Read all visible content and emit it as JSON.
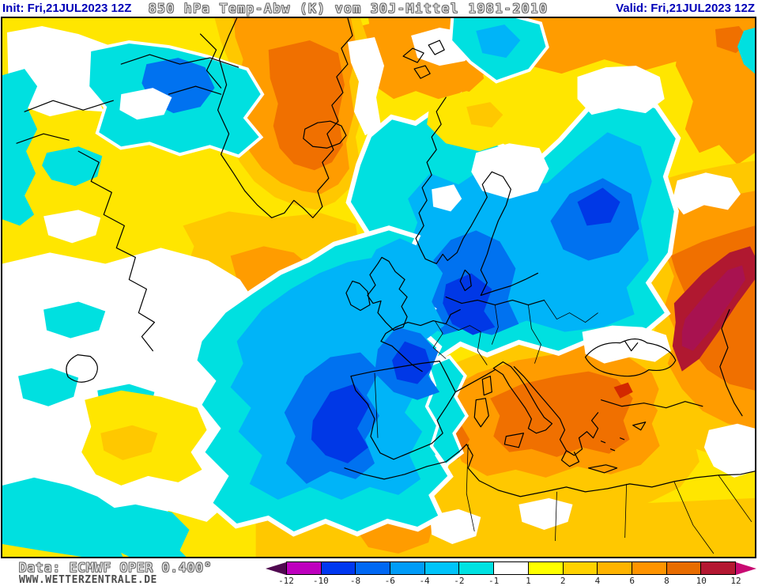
{
  "header": {
    "init_label": "Init: Fri,21JUL2023 12Z",
    "title": "850 hPa Temp-Abw (K) vom 30J-Mittel 1981-2010",
    "valid_label": "Valid: Fri,21JUL2023 12Z",
    "accent_color": "#0000b8"
  },
  "footer": {
    "data_source": "Data: ECMWF OPER 0.400°",
    "website": "WWW.WETTERZENTRALE.DE"
  },
  "colorbar": {
    "unit": "K",
    "ticks": [
      "-12",
      "-10",
      "-8",
      "-6",
      "-4",
      "-2",
      "-1",
      "1",
      "2",
      "4",
      "6",
      "8",
      "10",
      "12"
    ],
    "segment_colors": [
      "#be00be",
      "#0038f0",
      "#0068f4",
      "#009cf8",
      "#00c4fa",
      "#00e2e2",
      "#ffffff",
      "#ffff00",
      "#ffd200",
      "#ffb400",
      "#ff9400",
      "#e86c00",
      "#b41832"
    ],
    "arrow_left_color": "#500850",
    "arrow_right_color": "#c80a72"
  },
  "map": {
    "palette": {
      "yellow": "#ffe600",
      "gold": "#ffc800",
      "orange": "#ff9c00",
      "darkOrange": "#f07000",
      "red": "#d22800",
      "darkRed": "#b01830",
      "magenta": "#a81250",
      "cyan": "#00e0e0",
      "lightBlue": "#00b4f8",
      "medBlue": "#0072f0",
      "deepBlue": "#0038e6",
      "white": "#ffffff",
      "coast": "#000000"
    }
  }
}
